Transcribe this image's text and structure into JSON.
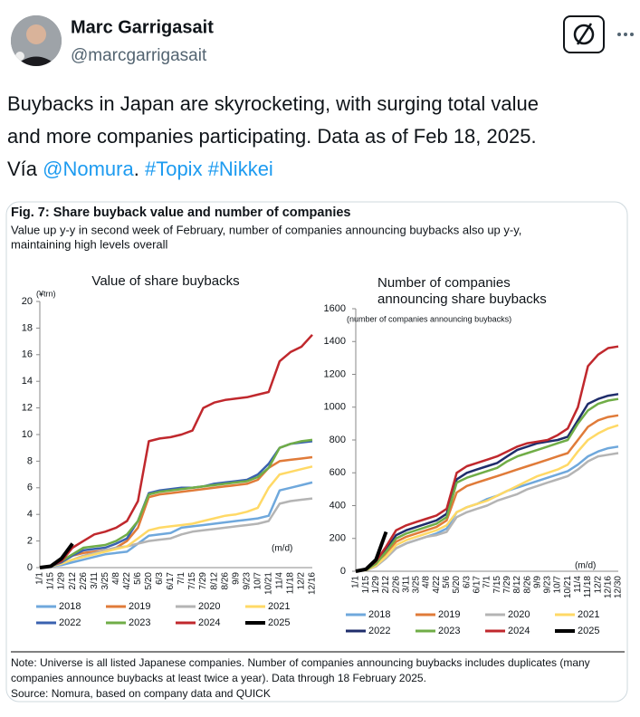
{
  "tweet": {
    "name": "Marc Garrigasait",
    "handle": "@marcgarrigasait",
    "text_lines": [
      [
        "Buybacks in Japan are skyrocketing, with surging total value"
      ],
      [
        "and more companies participating. Data as of Feb 18, 2025."
      ],
      [
        "Vía ",
        "@Nomura",
        ". ",
        "#Topix",
        " ",
        "#Nikkei"
      ]
    ]
  },
  "figure": {
    "title": "Fig. 7: Share buyback value and number of companies",
    "subtitle_lines": [
      "Value up y-y in second week of February, number of companies announcing buybacks also up y-y,",
      "maintaining high levels overall"
    ],
    "note_lines": [
      "Note: Universe is all listed Japanese companies. Number of companies announcing buybacks includes duplicates (many",
      "companies announce buybacks at least twice a year). Data through 18 February 2025."
    ],
    "source": "Source: Nomura, based on company data and QUICK"
  },
  "chart_data": [
    {
      "type": "line",
      "title_lines": [
        "Value of share buybacks"
      ],
      "y_unit": "(¥trn)",
      "x_unit": "(m/d)",
      "ylim": [
        0,
        20
      ],
      "yticks": [
        0,
        2,
        4,
        6,
        8,
        10,
        12,
        14,
        16,
        18,
        20
      ],
      "categories": [
        "1/1",
        "1/15",
        "1/29",
        "2/12",
        "2/26",
        "3/11",
        "3/25",
        "4/8",
        "4/22",
        "5/6",
        "5/20",
        "6/3",
        "6/17",
        "7/1",
        "7/15",
        "7/29",
        "8/12",
        "8/26",
        "9/9",
        "9/23",
        "10/7",
        "10/21",
        "11/4",
        "11/18",
        "12/2",
        "12/16"
      ],
      "series": [
        {
          "name": "2018",
          "color": "#6fa8dc",
          "values": [
            0,
            0.1,
            0.2,
            0.4,
            0.6,
            0.8,
            1,
            1.1,
            1.2,
            1.8,
            2.4,
            2.5,
            2.6,
            3,
            3.1,
            3.2,
            3.3,
            3.4,
            3.5,
            3.6,
            3.7,
            3.9,
            5.8,
            6,
            6.2,
            6.4
          ]
        },
        {
          "name": "2019",
          "color": "#e07b39",
          "values": [
            0,
            0.1,
            0.5,
            0.9,
            1.1,
            1.2,
            1.3,
            1.5,
            2,
            3,
            5.3,
            5.5,
            5.6,
            5.7,
            5.8,
            5.9,
            6,
            6.1,
            6.2,
            6.3,
            6.6,
            7.5,
            8,
            8.1,
            8.2,
            8.3
          ]
        },
        {
          "name": "2020",
          "color": "#b4b4b4",
          "values": [
            0,
            0.1,
            0.3,
            0.6,
            0.9,
            1.1,
            1.3,
            1.5,
            1.6,
            1.8,
            2,
            2.1,
            2.2,
            2.5,
            2.7,
            2.8,
            2.9,
            3,
            3.1,
            3.2,
            3.3,
            3.5,
            4.8,
            5,
            5.1,
            5.2
          ]
        },
        {
          "name": "2021",
          "color": "#ffd966",
          "values": [
            0,
            0.1,
            0.3,
            0.6,
            0.8,
            1,
            1.2,
            1.4,
            1.6,
            2.2,
            2.8,
            3,
            3.1,
            3.2,
            3.3,
            3.5,
            3.7,
            3.9,
            4,
            4.2,
            4.5,
            6,
            7,
            7.2,
            7.4,
            7.6
          ]
        },
        {
          "name": "2022",
          "color": "#3a62b0",
          "values": [
            0,
            0.1,
            0.4,
            0.9,
            1.3,
            1.4,
            1.5,
            1.8,
            2.2,
            3.5,
            5.6,
            5.8,
            5.9,
            6,
            6,
            6.1,
            6.3,
            6.4,
            6.5,
            6.6,
            7,
            7.8,
            9,
            9.3,
            9.4,
            9.5
          ]
        },
        {
          "name": "2023",
          "color": "#70ad47",
          "values": [
            0,
            0.1,
            0.5,
            1,
            1.5,
            1.6,
            1.7,
            2,
            2.5,
            3.5,
            5.5,
            5.7,
            5.8,
            5.9,
            6,
            6.1,
            6.2,
            6.3,
            6.4,
            6.5,
            6.8,
            7.5,
            9,
            9.3,
            9.5,
            9.6
          ]
        },
        {
          "name": "2024",
          "color": "#c0282d",
          "values": [
            0,
            0.1,
            0.5,
            1.5,
            2,
            2.5,
            2.7,
            3,
            3.5,
            5,
            9.5,
            9.7,
            9.8,
            10,
            10.3,
            12,
            12.4,
            12.6,
            12.7,
            12.8,
            13,
            13.2,
            15.5,
            16.2,
            16.6,
            17.5
          ]
        },
        {
          "name": "2025",
          "color": "#000000",
          "values": [
            0,
            0.1,
            0.7,
            1.8,
            null,
            null,
            null,
            null,
            null,
            null,
            null,
            null,
            null,
            null,
            null,
            null,
            null,
            null,
            null,
            null,
            null,
            null,
            null,
            null,
            null,
            null
          ]
        }
      ]
    },
    {
      "type": "line",
      "title_lines": [
        "Number of companies",
        "announcing share buybacks"
      ],
      "y_unit": "(number of companies announcing buybacks)",
      "x_unit": "(m/d)",
      "ylim": [
        0,
        1600
      ],
      "yticks": [
        0,
        200,
        400,
        600,
        800,
        1000,
        1200,
        1400,
        1600
      ],
      "categories": [
        "1/1",
        "1/15",
        "1/29",
        "2/12",
        "2/26",
        "3/11",
        "3/25",
        "4/8",
        "4/22",
        "5/6",
        "5/20",
        "6/3",
        "6/17",
        "7/1",
        "7/15",
        "7/29",
        "8/12",
        "8/26",
        "9/9",
        "9/23",
        "10/7",
        "10/21",
        "11/4",
        "11/18",
        "12/2",
        "12/16",
        "12/30"
      ],
      "series": [
        {
          "name": "2018",
          "color": "#6fa8dc",
          "values": [
            0,
            6,
            30,
            80,
            140,
            170,
            190,
            210,
            230,
            260,
            360,
            390,
            410,
            440,
            460,
            490,
            510,
            530,
            550,
            570,
            590,
            610,
            650,
            700,
            730,
            750,
            760
          ]
        },
        {
          "name": "2019",
          "color": "#e07b39",
          "values": [
            0,
            7,
            40,
            110,
            180,
            210,
            230,
            250,
            270,
            310,
            480,
            520,
            540,
            560,
            580,
            600,
            620,
            640,
            660,
            680,
            700,
            720,
            800,
            880,
            920,
            940,
            950
          ]
        },
        {
          "name": "2020",
          "color": "#b4b4b4",
          "values": [
            0,
            5,
            30,
            80,
            140,
            170,
            190,
            210,
            220,
            240,
            330,
            360,
            380,
            400,
            430,
            450,
            470,
            500,
            520,
            540,
            560,
            580,
            620,
            670,
            700,
            710,
            720
          ]
        },
        {
          "name": "2021",
          "color": "#ffd966",
          "values": [
            0,
            6,
            35,
            90,
            160,
            190,
            210,
            230,
            250,
            280,
            360,
            390,
            410,
            430,
            460,
            490,
            520,
            550,
            580,
            600,
            620,
            650,
            730,
            800,
            840,
            870,
            890
          ]
        },
        {
          "name": "2022",
          "color": "#1f2d6b",
          "values": [
            0,
            8,
            50,
            130,
            220,
            250,
            270,
            290,
            310,
            350,
            560,
            600,
            620,
            640,
            660,
            700,
            740,
            760,
            780,
            790,
            800,
            820,
            920,
            1020,
            1050,
            1070,
            1080
          ]
        },
        {
          "name": "2023",
          "color": "#70ad47",
          "values": [
            0,
            8,
            45,
            120,
            200,
            230,
            250,
            270,
            290,
            330,
            540,
            570,
            590,
            610,
            630,
            670,
            700,
            720,
            740,
            760,
            780,
            800,
            900,
            980,
            1020,
            1040,
            1050
          ]
        },
        {
          "name": "2024",
          "color": "#c0282d",
          "values": [
            0,
            10,
            60,
            150,
            250,
            280,
            300,
            320,
            340,
            380,
            600,
            640,
            660,
            680,
            700,
            730,
            760,
            780,
            790,
            800,
            830,
            870,
            1000,
            1250,
            1320,
            1360,
            1370
          ]
        },
        {
          "name": "2025",
          "color": "#000000",
          "values": [
            0,
            12,
            70,
            240,
            null,
            null,
            null,
            null,
            null,
            null,
            null,
            null,
            null,
            null,
            null,
            null,
            null,
            null,
            null,
            null,
            null,
            null,
            null,
            null,
            null,
            null,
            null
          ]
        }
      ]
    }
  ]
}
